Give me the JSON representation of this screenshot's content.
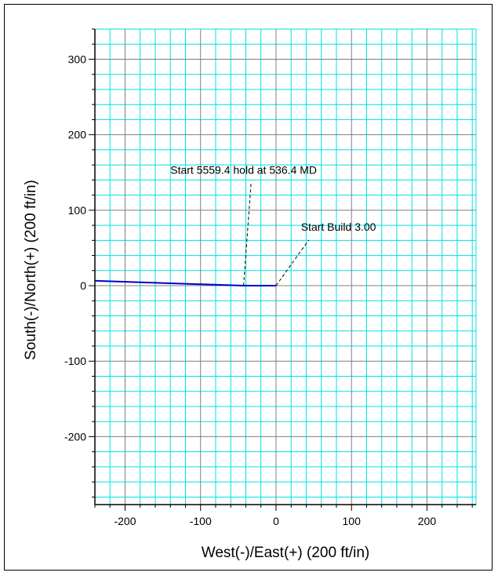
{
  "chart_data": {
    "type": "line",
    "title": "",
    "xlabel": "West(-)/East(+)  (200 ft/in)",
    "ylabel": "South(-)/North(+)  (200 ft/in)",
    "xlim": [
      -240,
      265
    ],
    "ylim": [
      -290,
      340
    ],
    "x_ticks": [
      -200,
      -100,
      0,
      100,
      200
    ],
    "y_ticks": [
      300,
      200,
      100,
      0,
      -100,
      -200
    ],
    "x_tick_labels": [
      "-200",
      "-100",
      "0",
      "100",
      "200"
    ],
    "y_tick_labels": [
      "300",
      "200",
      "100",
      "0",
      "-100",
      "-200"
    ],
    "grid": true,
    "colors": {
      "major_grid": "#7f7f7f",
      "minor_grid": "#00e0e0",
      "line": "#0000cc"
    },
    "series": [
      {
        "x": [
          0,
          -43,
          -240
        ],
        "y": [
          0,
          0,
          6.5
        ]
      }
    ],
    "annotations": [
      {
        "text": "Start 5559.4 hold at 536.4 MD",
        "anchor_x": -43,
        "anchor_y": 0,
        "text_x": -140,
        "text_y": 148
      },
      {
        "text": "Start Build 3.00",
        "anchor_x": 0,
        "anchor_y": 0,
        "text_x": 33,
        "text_y": 73
      }
    ]
  }
}
